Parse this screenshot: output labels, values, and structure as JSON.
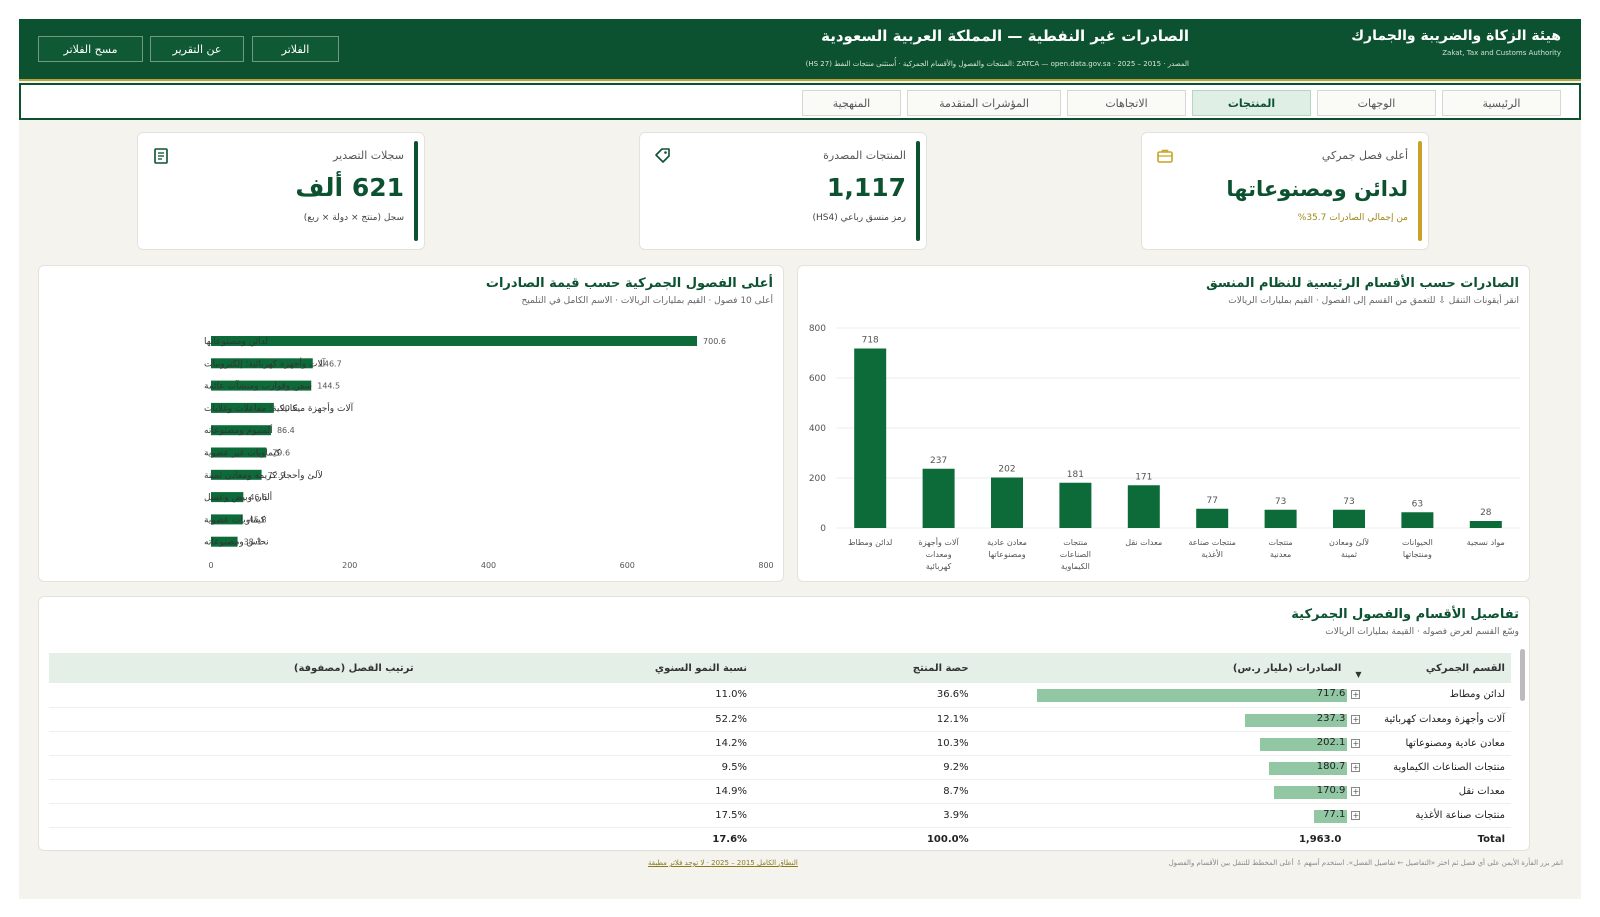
{
  "header": {
    "org_ar": "هيئة الزكاة والضريبة والجمارك",
    "org_en": "Zakat, Tax and Customs Authority",
    "title": "الصادرات غير النفطية — المملكة العربية السعودية",
    "subtitle": "المصدر · 2015 – 2025 · ZATCA — open.data.gov.sa :المنتجات والفصول والأقسام الجمركية · أُستثنى منتجات النفط (HS 27)",
    "buttons": {
      "filters": "الفلاتر",
      "about": "عن التقرير",
      "clear": "مسح الفلاتر"
    }
  },
  "nav": {
    "tabs": [
      "الرئيسية",
      "الوجهات",
      "المنتجات",
      "الاتجاهات",
      "المؤشرات المتقدمة",
      "المنهجية"
    ],
    "active": "المنتجات"
  },
  "kpis": [
    {
      "title": "أعلى فصل جمركي",
      "value": "لدائن ومصنوعاتها",
      "sub": "من إجمالي الصادرات 35.7%",
      "accent": "#c9a227",
      "icon": "briefcase-icon"
    },
    {
      "title": "المنتجات المصدرة",
      "value": "1,117",
      "sub": "رمز منسق رباعي (HS4)",
      "accent": "#0c5230",
      "icon": "tag-icon"
    },
    {
      "title": "سجلات التصدير",
      "value": "621 ألف",
      "sub": "سجل (منتج × دولة × ربع)",
      "accent": "#0c5230",
      "icon": "document-icon"
    }
  ],
  "left_panel": {
    "title": "الصادرات حسب الأقسام الرئيسية للنظام المنسق",
    "subtitle": "انقر أيقونات التنقل ⇩ للتعمق من القسم إلى الفصول · القيم بمليارات الريالات"
  },
  "right_panel": {
    "title": "أعلى الفصول الجمركية حسب قيمة الصادرات",
    "subtitle": "أعلى 10 فصول · القيم بمليارات الريالات · الاسم الكامل في التلميح"
  },
  "chart_data": [
    {
      "type": "bar",
      "orientation": "vertical",
      "categories": [
        "لدائن ومطاط",
        "آلات وأجهزة ومعدات كهربائية",
        "معادن عادية ومصنوعاتها",
        "منتجات الصناعات الكيماوية",
        "معدات نقل",
        "منتجات صناعة الأغذية",
        "منتجات معدنية",
        "لآلئ ومعادن ثمينة",
        "الحيوانات ومنتجاتها",
        "مواد نسجية"
      ],
      "values": [
        718,
        237,
        202,
        181,
        171,
        77,
        73,
        73,
        63,
        28
      ],
      "ylim": [
        0,
        800
      ],
      "yticks": [
        0,
        200,
        400,
        600,
        800
      ],
      "color": "#0d6b3a"
    },
    {
      "type": "bar",
      "orientation": "horizontal",
      "categories": [
        "لدائن ومصنوعاتها",
        "آلات وأجهزة كهربائية؛ إلكترونيات",
        "سفن وقوارب ومنشآت عائمة",
        "آلات وأجهزة ميكانيكية؛ مفاعلات وغلايات",
        "ألمنيوم ومصنوعاته",
        "كيماويات غير عضوية",
        "لآلئ وأحجار كريمة ومعادن ثمينة",
        "ألبان وبيض وعسل",
        "كيماويات عضوية",
        "نحاس ومصنوعاته"
      ],
      "values": [
        700.6,
        146.7,
        144.5,
        90.6,
        86.4,
        79.6,
        72.9,
        46.6,
        45.8,
        38.3
      ],
      "xlim": [
        0,
        800
      ],
      "xticks": [
        0,
        200,
        400,
        600,
        800
      ],
      "color": "#0d6b3a"
    }
  ],
  "table": {
    "title": "تفاصيل الأقسام والفصول الجمركية",
    "subtitle": "وسّع القسم لعرض فصوله · القيمة بمليارات الريالات",
    "columns": {
      "section": "القسم الجمركي",
      "exports": "الصادرات (مليار ر.س)",
      "share": "حصة المنتج",
      "growth": "نسبة النمو السنوي",
      "rank": "ترتيب الفصل (مصفوفة)"
    },
    "rows": [
      {
        "name": "لدائن ومطاط",
        "exports": "717.6",
        "share": "36.6%",
        "growth": "11.0%",
        "fraction": 1.0
      },
      {
        "name": "آلات وأجهزة ومعدات كهربائية",
        "exports": "237.3",
        "share": "12.1%",
        "growth": "52.2%",
        "fraction": 0.331
      },
      {
        "name": "معادن عادية ومصنوعاتها",
        "exports": "202.1",
        "share": "10.3%",
        "growth": "14.2%",
        "fraction": 0.282
      },
      {
        "name": "منتجات الصناعات الكيماوية",
        "exports": "180.7",
        "share": "9.2%",
        "growth": "9.5%",
        "fraction": 0.252
      },
      {
        "name": "معدات نقل",
        "exports": "170.9",
        "share": "8.7%",
        "growth": "14.9%",
        "fraction": 0.238
      },
      {
        "name": "منتجات صناعة الأغذية",
        "exports": "77.1",
        "share": "3.9%",
        "growth": "17.5%",
        "fraction": 0.107
      }
    ],
    "total": {
      "label": "Total",
      "exports": "1,963.0",
      "share": "100.0%",
      "growth": "17.6%"
    }
  },
  "footer": {
    "hint": "انقر بزر الفأرة الأيمن على أي فصل ثم اختر «التفاصيل ← تفاصيل الفصل». استخدم أسهم ⇩ أعلى المخطط للتنقل بين الأقسام والفصول",
    "range": "النطاق الكامل 2015 – 2025 · لا توجد فلاتر مطبقة"
  }
}
